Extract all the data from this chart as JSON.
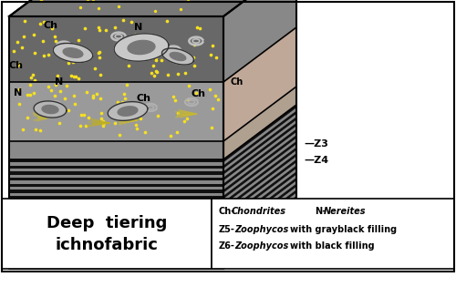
{
  "title": "Deep  tiering\nichnofabric",
  "title_fontsize": 13,
  "legend_lines": [
    "Ch- Chondrites        N- Nereites",
    "Z5- Zoophycos with grayblack filling",
    "Z6- Zoophycos with black filling"
  ],
  "z3_label": "Z3",
  "z4_label": "Z4",
  "bg_color": "#ffffff",
  "top_face_color": "#787878",
  "dot_color": "#f5e020",
  "n_stripes": 18
}
